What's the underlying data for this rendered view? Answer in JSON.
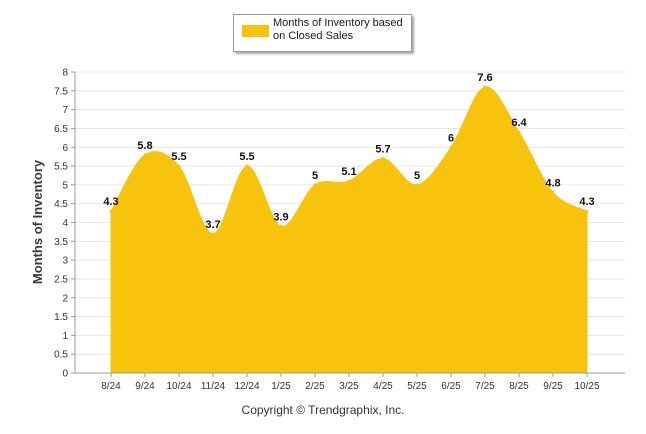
{
  "chart_data": {
    "type": "area",
    "title": "",
    "xlabel": "",
    "ylabel": "Months of Inventory",
    "categories": [
      "8/24",
      "9/24",
      "10/24",
      "11/24",
      "12/24",
      "1/25",
      "2/25",
      "3/25",
      "4/25",
      "5/25",
      "6/25",
      "7/25",
      "8/25",
      "9/25",
      "10/25"
    ],
    "series": [
      {
        "name": "Months of Inventory based on Closed Sales",
        "values": [
          4.3,
          5.8,
          5.5,
          3.7,
          5.5,
          3.9,
          5,
          5.1,
          5.7,
          5,
          6,
          7.6,
          6.4,
          4.8,
          4.3
        ]
      }
    ],
    "ylim": [
      0,
      8
    ],
    "yticks": [
      "0",
      "0.5",
      "1",
      "1.5",
      "2",
      "2.5",
      "3",
      "3.5",
      "4",
      "4.5",
      "5",
      "5.5",
      "6",
      "6.5",
      "7",
      "7.5",
      "8"
    ],
    "grid": true,
    "legend_position": "top-center",
    "color": "#F8C30C"
  },
  "legend": {
    "label": "Months of Inventory based on Closed Sales"
  },
  "footer": {
    "copyright": "Copyright © Trendgraphix, Inc."
  }
}
